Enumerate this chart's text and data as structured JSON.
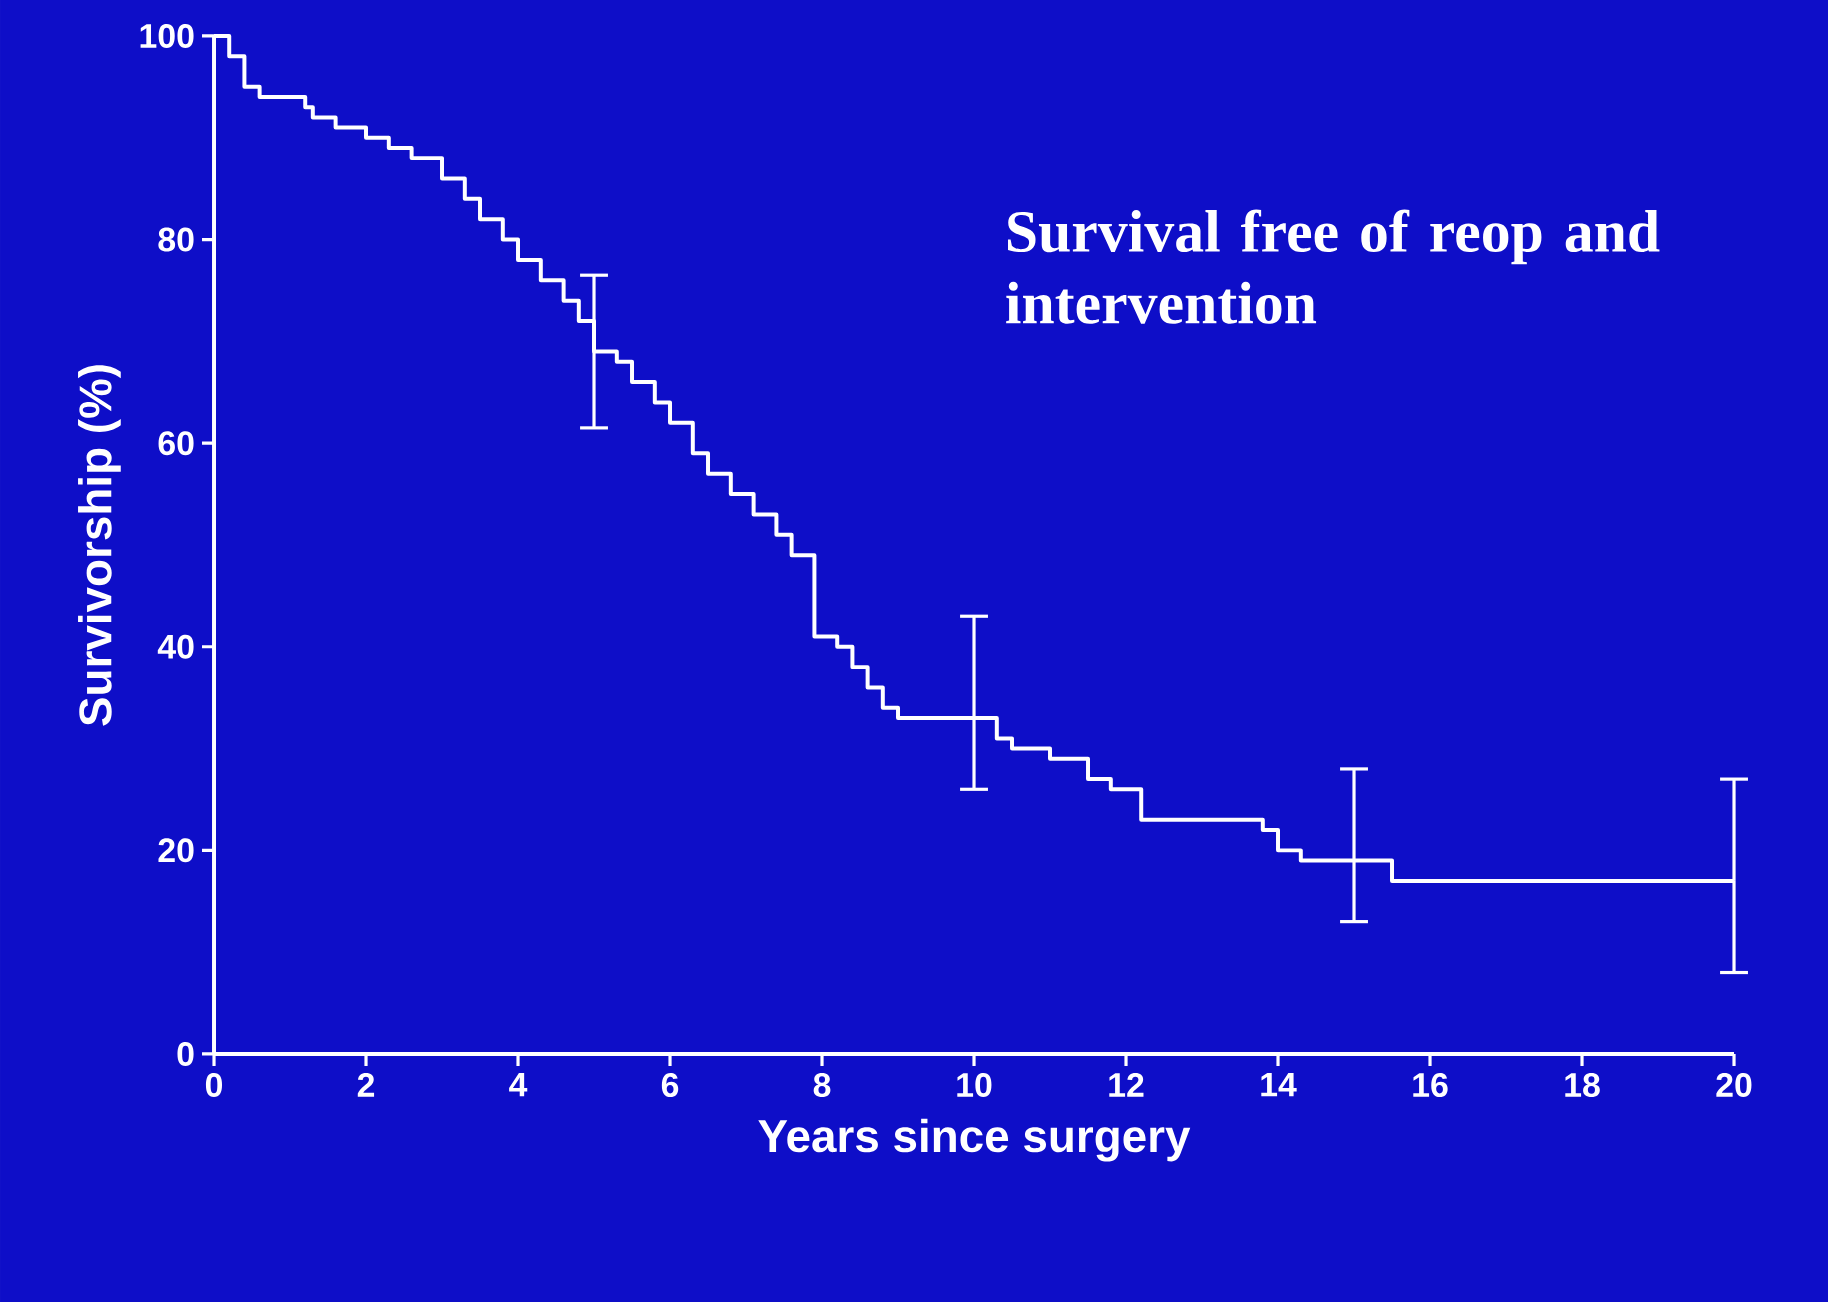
{
  "chart_data": {
    "type": "step",
    "title": "Survival free of reop and intervention",
    "xlabel": "Years since surgery",
    "ylabel": "Survivorship (%)",
    "xlim": [
      0,
      20
    ],
    "ylim": [
      0,
      100
    ],
    "xticks": [
      0,
      2,
      4,
      6,
      8,
      10,
      12,
      14,
      16,
      18,
      20
    ],
    "yticks": [
      0,
      20,
      40,
      60,
      80,
      100
    ],
    "grid": false,
    "series": [
      {
        "color": "#ffffff",
        "x": [
          0,
          0.2,
          0.4,
          0.6,
          1.2,
          1.3,
          1.6,
          2,
          2.3,
          2.6,
          3,
          3.3,
          3.5,
          3.8,
          4,
          4.3,
          4.6,
          4.8,
          5,
          5.3,
          5.5,
          5.8,
          6,
          6.3,
          6.5,
          6.8,
          7.1,
          7.4,
          7.6,
          7.9,
          8.2,
          8.4,
          8.6,
          8.8,
          9,
          10,
          10.3,
          10.5,
          11,
          11.5,
          11.8,
          12.2,
          13.6,
          13.8,
          14,
          14.3,
          15,
          15.5,
          20
        ],
        "values": [
          100,
          98,
          95,
          94,
          93,
          92,
          91,
          90,
          89,
          88,
          86,
          84,
          82,
          80,
          78,
          76,
          74,
          72,
          69,
          68,
          66,
          64,
          62,
          59,
          57,
          55,
          53,
          51,
          49,
          41,
          40,
          38,
          36,
          34,
          33,
          33,
          31,
          30,
          29,
          27,
          26,
          23,
          23,
          22,
          20,
          19,
          19,
          17,
          17
        ],
        "errors": [
          null,
          null,
          null,
          null,
          null,
          null,
          null,
          null,
          null,
          null,
          null,
          null,
          null,
          null,
          null,
          null,
          null,
          null,
          [
            61.5,
            76.5
          ],
          null,
          null,
          null,
          null,
          null,
          null,
          null,
          null,
          null,
          null,
          null,
          null,
          null,
          null,
          null,
          null,
          [
            26,
            43
          ],
          null,
          null,
          null,
          null,
          null,
          null,
          null,
          null,
          null,
          null,
          [
            13,
            28
          ],
          null,
          [
            8,
            27
          ]
        ]
      }
    ]
  }
}
